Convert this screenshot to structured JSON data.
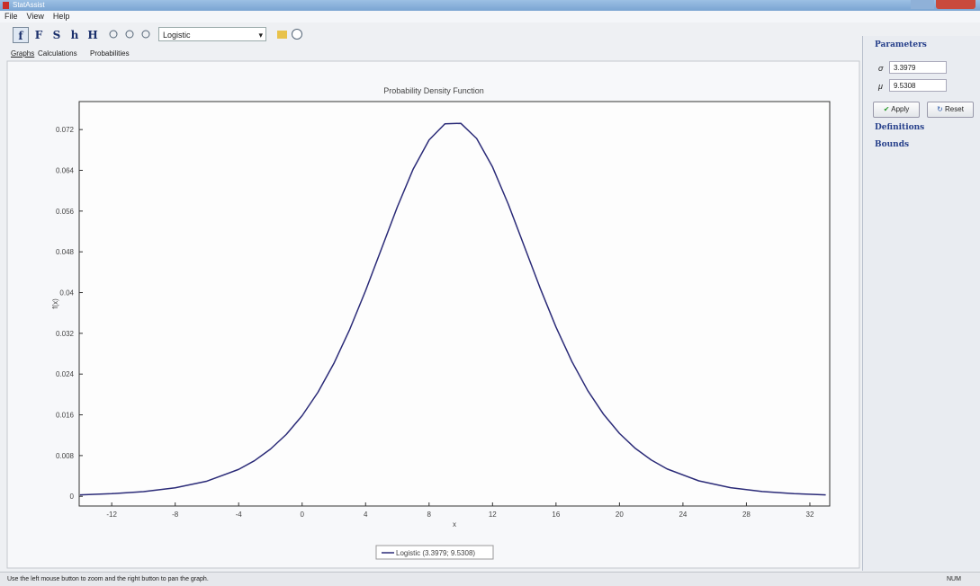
{
  "window": {
    "title": "StatAssist"
  },
  "menu": [
    "File",
    "View",
    "Help"
  ],
  "toolbar": {
    "buttons": [
      "f",
      "F",
      "S",
      "h",
      "H"
    ],
    "distribution": "Logistic"
  },
  "tabs": [
    "Graphs",
    "Calculations",
    "Probabilities"
  ],
  "chart_data": {
    "type": "line",
    "title": "Probability Density Function",
    "x_label": "x",
    "y_label": "f(x)",
    "x": [
      -14,
      -12,
      -10,
      -8,
      -6,
      -4,
      -3,
      -2,
      -1,
      0,
      1,
      2,
      3,
      4,
      5,
      6,
      7,
      8,
      9,
      10,
      11,
      12,
      13,
      14,
      15,
      16,
      17,
      18,
      19,
      20,
      21,
      22,
      23,
      25,
      27,
      29,
      31,
      33
    ],
    "series": [
      {
        "name": "Logistic (3.3979; 9.5308)",
        "color": "#2b2b78",
        "values": [
          0.00029,
          0.00052,
          0.00093,
          0.00167,
          0.00298,
          0.00529,
          0.007,
          0.00926,
          0.01215,
          0.01583,
          0.02044,
          0.02608,
          0.03277,
          0.04038,
          0.04859,
          0.05681,
          0.06425,
          0.06996,
          0.07313,
          0.07323,
          0.07024,
          0.06466,
          0.0573,
          0.0491,
          0.04088,
          0.03322,
          0.02647,
          0.02076,
          0.01609,
          0.01235,
          0.00941,
          0.00714,
          0.00538,
          0.00304,
          0.0017,
          0.00095,
          0.00053,
          0.00029
        ]
      }
    ],
    "xlim": [
      -14.05,
      33.25
    ],
    "ylim": [
      -0.0019,
      0.0775
    ],
    "xticks": [
      -12,
      -8,
      -4,
      0,
      4,
      8,
      12,
      16,
      20,
      24,
      28,
      32
    ],
    "yticks": [
      0,
      0.008,
      0.016,
      0.024,
      0.032,
      0.04,
      0.048,
      0.056,
      0.064,
      0.072
    ]
  },
  "parameters": {
    "title": "Parameters",
    "params": [
      {
        "symbol": "σ",
        "value": "3.3979"
      },
      {
        "symbol": "μ",
        "value": "9.5308"
      }
    ],
    "apply": "Apply",
    "reset": "Reset"
  },
  "sections": [
    "Definitions",
    "Bounds"
  ],
  "status": {
    "message": "Use the left mouse button to zoom and the right button to pan the graph.",
    "indicator": "NUM"
  }
}
